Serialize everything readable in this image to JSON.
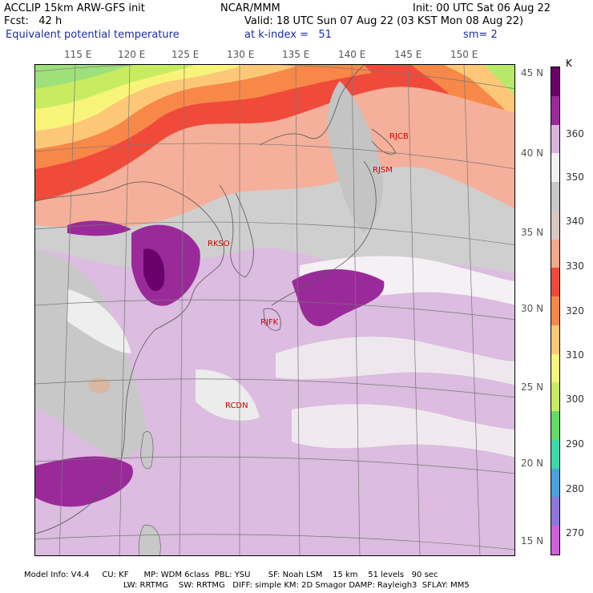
{
  "header": {
    "line1_left": "ACCLIP 15km ARW-GFS init",
    "line1_center": "NCAR/MMM",
    "line1_right": "Init: 00 UTC Sat 06 Aug 22",
    "line2_left": "Fcst:   42 h",
    "line2_right": "Valid: 18 UTC Sun 07 Aug 22 (03 KST Mon 08 Aug 22)",
    "line3_left": "Equivalent potential temperature",
    "line3_center": "at k-index =   51",
    "line3_right": "sm= 2"
  },
  "lon_labels": [
    "115 E",
    "120 E",
    "125 E",
    "130 E",
    "135 E",
    "140 E",
    "145 E",
    "150 E"
  ],
  "lat_labels": [
    "45 N",
    "40 N",
    "35 N",
    "30 N",
    "25 N",
    "20 N",
    "15 N"
  ],
  "stations": [
    "RJCB",
    "RJSM",
    "RKSO",
    "RJFK",
    "RCDN"
  ],
  "colorbar": {
    "unit": "K",
    "labels": [
      "360",
      "350",
      "340",
      "330",
      "320",
      "310",
      "300",
      "290",
      "280",
      "270"
    ],
    "colors": [
      "#6a006a",
      "#9a2a9a",
      "#d8b4dc",
      "#f0f0f0",
      "#c8c8c8",
      "#d8c8c0",
      "#f4a88a",
      "#f04a3a",
      "#f88848",
      "#fcc878",
      "#f8f47a",
      "#c8ec60",
      "#64dc64",
      "#3cd8a8",
      "#4ca0dc",
      "#8c78dc",
      "#d060d8"
    ]
  },
  "footer": {
    "line1": "Model Info: V4.4     CU: KF      MP: WDM 6class  PBL: YSU       SF: Noah LSM    15 km    51 levels   90 sec",
    "line2": "LW: RRTMG    SW: RRTMG   DIFF: simple KM: 2D Smagor DAMP: Rayleigh3  SFLAY: MM5"
  }
}
